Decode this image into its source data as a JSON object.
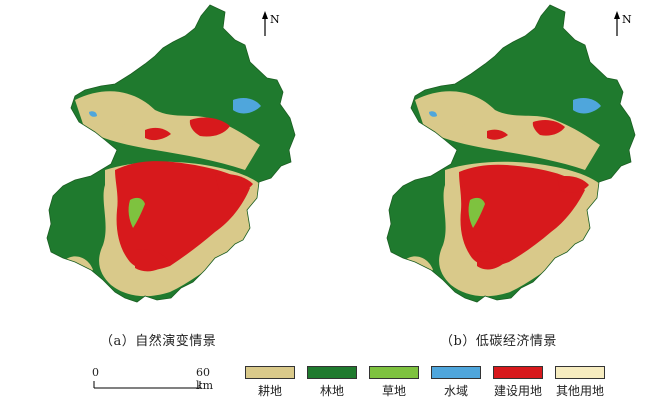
{
  "panels": [
    {
      "id": "a",
      "caption": "（a）自然演变情景",
      "north": "N"
    },
    {
      "id": "b",
      "caption": "（b）低碳经济情景",
      "north": "N"
    }
  ],
  "scale": {
    "start": "0",
    "end": "60 km"
  },
  "legend": [
    {
      "label": "耕地",
      "color": "#d9c98a"
    },
    {
      "label": "林地",
      "color": "#1f7a2e"
    },
    {
      "label": "草地",
      "color": "#7ec23f"
    },
    {
      "label": "水域",
      "color": "#4fa6dc"
    },
    {
      "label": "建设用地",
      "color": "#d7191c"
    },
    {
      "label": "其他用地",
      "color": "#f6ecc0"
    }
  ]
}
